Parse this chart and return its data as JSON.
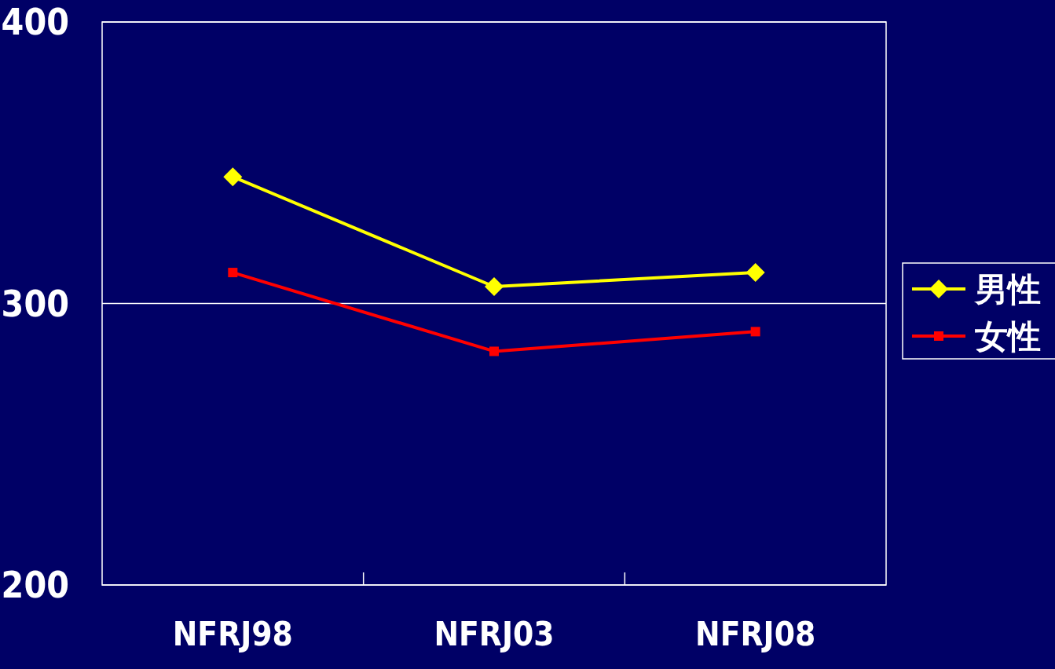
{
  "chart_data": {
    "type": "line",
    "categories": [
      "NFRJ98",
      "NFRJ03",
      "NFRJ08"
    ],
    "series": [
      {
        "name": "男性",
        "color": "#ffff00",
        "marker": "diamond",
        "values": [
          345,
          306,
          311
        ]
      },
      {
        "name": "女性",
        "color": "#ff0000",
        "marker": "square",
        "values": [
          311,
          283,
          290
        ]
      }
    ],
    "ylim": [
      200,
      400
    ],
    "yticks": [
      200,
      300,
      400
    ],
    "grid": "y",
    "legend": "right",
    "line_style": "solid"
  }
}
